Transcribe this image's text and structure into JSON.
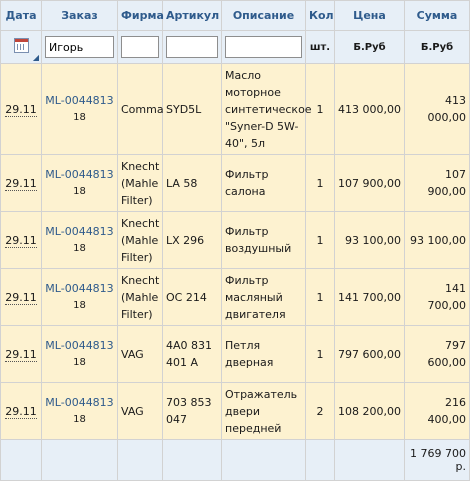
{
  "headers": {
    "date": "Дата",
    "order": "Заказ",
    "firm": "Фирма",
    "article": "Артикул",
    "description": "Описание",
    "qty": "Кол",
    "price": "Цена",
    "sum": "Сумма"
  },
  "filters": {
    "order_value": "Игорь",
    "firm_value": "",
    "article_value": "",
    "description_value": ""
  },
  "units": {
    "qty": "шт.",
    "price": "Б.Руб",
    "sum": "Б.Руб"
  },
  "rows": [
    {
      "date": "29.11",
      "order": "ML-0044813",
      "order_sub": "18",
      "firm": "Comma",
      "article": "SYD5L",
      "description": "Масло моторное синтетическое \"Syner-D 5W-40\", 5л",
      "qty": "1",
      "price": "413 000,00",
      "sum": "413 000,00"
    },
    {
      "date": "29.11",
      "order": "ML-0044813",
      "order_sub": "18",
      "firm": "Knecht (Mahle Filter)",
      "article": "LA 58",
      "description": "Фильтр салона",
      "qty": "1",
      "price": "107 900,00",
      "sum": "107 900,00"
    },
    {
      "date": "29.11",
      "order": "ML-0044813",
      "order_sub": "18",
      "firm": "Knecht (Mahle Filter)",
      "article": "LX 296",
      "description": "Фильтр воздушный",
      "qty": "1",
      "price": "93 100,00",
      "sum": "93 100,00"
    },
    {
      "date": "29.11",
      "order": "ML-0044813",
      "order_sub": "18",
      "firm": "Knecht (Mahle Filter)",
      "article": "OC 214",
      "description": "Фильтр масляный двигателя",
      "qty": "1",
      "price": "141 700,00",
      "sum": "141 700,00"
    },
    {
      "date": "29.11",
      "order": "ML-0044813",
      "order_sub": "18",
      "firm": "VAG",
      "article": "4A0 831 401 A",
      "description": "Петля дверная",
      "qty": "1",
      "price": "797 600,00",
      "sum": "797 600,00"
    },
    {
      "date": "29.11",
      "order": "ML-0044813",
      "order_sub": "18",
      "firm": "VAG",
      "article": "703 853 047",
      "description": "Отражатель двери передней",
      "qty": "2",
      "price": "108 200,00",
      "sum": "216 400,00"
    }
  ],
  "total": "1 769 700 р."
}
